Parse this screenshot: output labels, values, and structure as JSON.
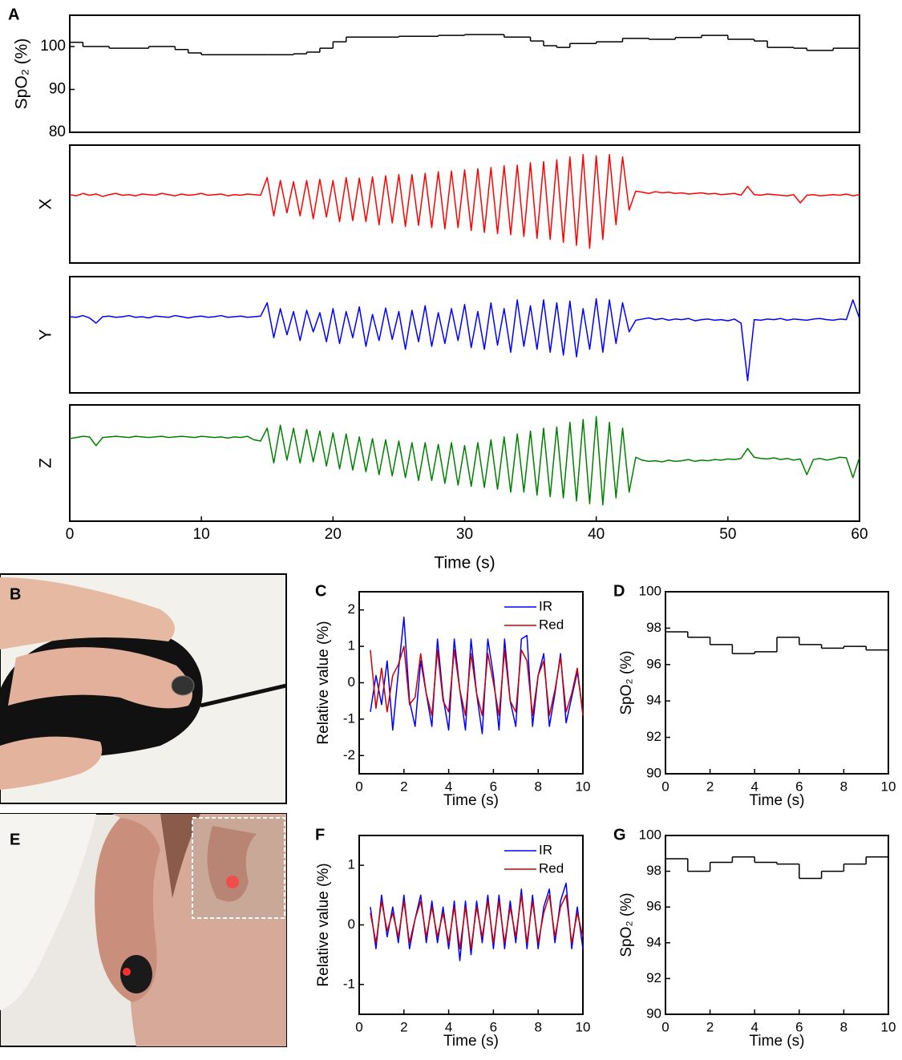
{
  "chart_data": [
    {
      "panel": "A",
      "type": "step",
      "ylabel": "SpO₂ (%)",
      "color": "#000000",
      "xlim": [
        0,
        60
      ],
      "ylim": [
        80,
        107.3
      ],
      "yticks": [
        80,
        90,
        100
      ],
      "x": [
        0,
        1,
        3,
        6,
        8,
        9,
        10,
        15,
        17,
        18,
        19,
        20,
        21,
        25,
        28,
        30,
        33,
        35,
        36,
        37,
        38,
        40,
        42,
        44,
        46,
        48,
        50,
        52,
        53,
        55,
        56,
        58
      ],
      "values": [
        101,
        100,
        99.6,
        100,
        99.3,
        98.5,
        98.1,
        98.1,
        98.3,
        98.7,
        99.6,
        101.1,
        102.2,
        102.4,
        102.6,
        102.8,
        102.2,
        101.3,
        100.2,
        99.8,
        100.7,
        101.1,
        101.9,
        101.7,
        102.1,
        102.6,
        101.7,
        101.3,
        99.8,
        99.6,
        99.1,
        99.6
      ]
    },
    {
      "type": "line",
      "ylabel": "X",
      "xlim": [
        0,
        60
      ],
      "ylim": [
        -1,
        1
      ],
      "x": [
        0,
        0.5,
        1,
        1.5,
        2,
        2.5,
        3,
        3.5,
        4,
        4.5,
        5,
        5.5,
        6,
        6.5,
        7,
        7.5,
        8,
        8.5,
        9,
        9.5,
        10,
        10.5,
        11,
        11.5,
        12,
        12.5,
        13,
        13.5,
        14,
        14.5,
        15,
        15.5,
        16,
        16.5,
        17,
        17.5,
        18,
        18.5,
        19,
        19.5,
        20,
        20.5,
        21,
        21.5,
        22,
        22.5,
        23,
        23.5,
        24,
        24.5,
        25,
        25.5,
        26,
        26.5,
        27,
        27.5,
        28,
        28.5,
        29,
        29.5,
        30,
        30.5,
        31,
        31.5,
        32,
        32.5,
        33,
        33.5,
        34,
        34.5,
        35,
        35.5,
        36,
        36.5,
        37,
        37.5,
        38,
        38.5,
        39,
        39.5,
        40,
        40.5,
        41,
        41.5,
        42,
        42.5,
        43,
        43.5,
        44,
        44.5,
        45,
        45.5,
        46,
        46.5,
        47,
        47.5,
        48,
        48.5,
        49,
        49.5,
        50,
        50.5,
        51,
        51.5,
        52,
        52.5,
        53,
        53.5,
        54,
        54.5,
        55,
        55.5,
        56,
        56.5,
        57,
        57.5,
        58,
        58.5,
        59,
        59.5,
        60
      ],
      "series": [
        {
          "color": "#ff0000",
          "values": [
            0.16,
            0.14,
            0.18,
            0.15,
            0.17,
            0.13,
            0.16,
            0.18,
            0.15,
            0.16,
            0.14,
            0.17,
            0.16,
            0.15,
            0.18,
            0.16,
            0.14,
            0.17,
            0.15,
            0.16,
            0.18,
            0.15,
            0.16,
            0.17,
            0.14,
            0.16,
            0.15,
            0.17,
            0.16,
            0.15,
            0.45,
            -0.2,
            0.4,
            -0.15,
            0.38,
            -0.2,
            0.4,
            -0.25,
            0.42,
            -0.22,
            0.4,
            -0.3,
            0.45,
            -0.28,
            0.44,
            -0.3,
            0.46,
            -0.35,
            0.48,
            -0.32,
            0.5,
            -0.38,
            0.5,
            -0.36,
            0.52,
            -0.4,
            0.55,
            -0.42,
            0.56,
            -0.4,
            0.58,
            -0.45,
            0.6,
            -0.48,
            0.62,
            -0.5,
            0.65,
            -0.52,
            0.66,
            -0.55,
            0.7,
            -0.58,
            0.72,
            -0.6,
            0.75,
            -0.65,
            0.8,
            -0.7,
            0.84,
            -0.75,
            0.82,
            -0.6,
            0.84,
            -0.35,
            0.8,
            -0.1,
            0.22,
            0.2,
            0.18,
            0.21,
            0.19,
            0.2,
            0.18,
            0.19,
            0.17,
            0.18,
            0.19,
            0.17,
            0.18,
            0.16,
            0.17,
            0.18,
            0.15,
            0.3,
            0.16,
            0.15,
            0.17,
            0.16,
            0.15,
            0.14,
            0.16,
            0.02,
            0.15,
            0.16,
            0.14,
            0.15,
            0.16,
            0.15,
            0.17,
            0.14,
            0.16
          ]
        }
      ]
    },
    {
      "type": "line",
      "ylabel": "Y",
      "xlim": [
        0,
        60
      ],
      "ylim": [
        -1,
        1
      ],
      "x": [
        0,
        0.5,
        1,
        1.5,
        2,
        2.5,
        3,
        3.5,
        4,
        4.5,
        5,
        5.5,
        6,
        6.5,
        7,
        7.5,
        8,
        8.5,
        9,
        9.5,
        10,
        10.5,
        11,
        11.5,
        12,
        12.5,
        13,
        13.5,
        14,
        14.5,
        15,
        15.5,
        16,
        16.5,
        17,
        17.5,
        18,
        18.5,
        19,
        19.5,
        20,
        20.5,
        21,
        21.5,
        22,
        22.5,
        23,
        23.5,
        24,
        24.5,
        25,
        25.5,
        26,
        26.5,
        27,
        27.5,
        28,
        28.5,
        29,
        29.5,
        30,
        30.5,
        31,
        31.5,
        32,
        32.5,
        33,
        33.5,
        34,
        34.5,
        35,
        35.5,
        36,
        36.5,
        37,
        37.5,
        38,
        38.5,
        39,
        39.5,
        40,
        40.5,
        41,
        41.5,
        42,
        42.5,
        43,
        43.5,
        44,
        44.5,
        45,
        45.5,
        46,
        46.5,
        47,
        47.5,
        48,
        48.5,
        49,
        49.5,
        50,
        50.5,
        51,
        51.5,
        52,
        52.5,
        53,
        53.5,
        54,
        54.5,
        55,
        55.5,
        56,
        56.5,
        57,
        57.5,
        58,
        58.5,
        59,
        59.5,
        60
      ],
      "series": [
        {
          "color": "#0000ff",
          "values": [
            0.31,
            0.3,
            0.33,
            0.29,
            0.2,
            0.31,
            0.32,
            0.3,
            0.31,
            0.33,
            0.3,
            0.31,
            0.29,
            0.32,
            0.31,
            0.3,
            0.33,
            0.31,
            0.29,
            0.31,
            0.32,
            0.3,
            0.31,
            0.33,
            0.3,
            0.31,
            0.32,
            0.3,
            0.31,
            0.32,
            0.55,
            -0.05,
            0.45,
            0.0,
            0.4,
            -0.1,
            0.42,
            0.05,
            0.38,
            -0.12,
            0.45,
            -0.15,
            0.4,
            -0.05,
            0.48,
            -0.2,
            0.35,
            -0.1,
            0.46,
            -0.08,
            0.4,
            -0.25,
            0.42,
            -0.12,
            0.5,
            -0.2,
            0.38,
            -0.15,
            0.45,
            -0.1,
            0.52,
            -0.22,
            0.4,
            -0.25,
            0.55,
            -0.18,
            0.45,
            -0.3,
            0.6,
            -0.2,
            0.5,
            -0.25,
            0.6,
            -0.3,
            0.55,
            -0.35,
            0.58,
            -0.38,
            0.45,
            -0.25,
            0.62,
            -0.3,
            0.6,
            -0.15,
            0.55,
            0.05,
            0.25,
            0.27,
            0.29,
            0.26,
            0.28,
            0.25,
            0.27,
            0.26,
            0.28,
            0.24,
            0.26,
            0.27,
            0.25,
            0.26,
            0.24,
            0.27,
            0.2,
            -0.79,
            0.26,
            0.25,
            0.27,
            0.26,
            0.28,
            0.25,
            0.27,
            0.26,
            0.25,
            0.27,
            0.28,
            0.26,
            0.25,
            0.27,
            0.26,
            0.6,
            0.28
          ]
        }
      ]
    },
    {
      "type": "line",
      "ylabel": "Z",
      "xlabel": "Time (s)",
      "xlim": [
        0,
        60
      ],
      "ylim": [
        -1,
        1
      ],
      "xticks": [
        0,
        10,
        20,
        30,
        40,
        50,
        60
      ],
      "x": [
        0,
        0.5,
        1,
        1.5,
        2,
        2.5,
        3,
        3.5,
        4,
        4.5,
        5,
        5.5,
        6,
        6.5,
        7,
        7.5,
        8,
        8.5,
        9,
        9.5,
        10,
        10.5,
        11,
        11.5,
        12,
        12.5,
        13,
        13.5,
        14,
        14.5,
        15,
        15.5,
        16,
        16.5,
        17,
        17.5,
        18,
        18.5,
        19,
        19.5,
        20,
        20.5,
        21,
        21.5,
        22,
        22.5,
        23,
        23.5,
        24,
        24.5,
        25,
        25.5,
        26,
        26.5,
        27,
        27.5,
        28,
        28.5,
        29,
        29.5,
        30,
        30.5,
        31,
        31.5,
        32,
        32.5,
        33,
        33.5,
        34,
        34.5,
        35,
        35.5,
        36,
        36.5,
        37,
        37.5,
        38,
        38.5,
        39,
        39.5,
        40,
        40.5,
        41,
        41.5,
        42,
        42.5,
        43,
        43.5,
        44,
        44.5,
        45,
        45.5,
        46,
        46.5,
        47,
        47.5,
        48,
        48.5,
        49,
        49.5,
        50,
        50.5,
        51,
        51.5,
        52,
        52.5,
        53,
        53.5,
        54,
        54.5,
        55,
        55.5,
        56,
        56.5,
        57,
        57.5,
        58,
        58.5,
        59,
        59.5,
        60
      ],
      "series": [
        {
          "color": "#008000",
          "values": [
            0.42,
            0.44,
            0.46,
            0.45,
            0.3,
            0.44,
            0.45,
            0.46,
            0.45,
            0.44,
            0.46,
            0.45,
            0.44,
            0.45,
            0.46,
            0.44,
            0.45,
            0.46,
            0.45,
            0.44,
            0.46,
            0.45,
            0.44,
            0.45,
            0.43,
            0.45,
            0.44,
            0.46,
            0.4,
            0.38,
            0.6,
            0.0,
            0.65,
            0.05,
            0.6,
            0.0,
            0.58,
            0.02,
            0.55,
            -0.05,
            0.52,
            -0.1,
            0.5,
            -0.12,
            0.45,
            -0.15,
            0.42,
            -0.2,
            0.4,
            -0.22,
            0.38,
            -0.25,
            0.35,
            -0.3,
            0.35,
            -0.3,
            0.32,
            -0.35,
            0.35,
            -0.38,
            0.3,
            -0.4,
            0.35,
            -0.42,
            0.4,
            -0.45,
            0.45,
            -0.5,
            0.5,
            -0.5,
            0.55,
            -0.55,
            0.6,
            -0.58,
            0.62,
            -0.6,
            0.7,
            -0.65,
            0.75,
            -0.7,
            0.8,
            -0.72,
            0.7,
            -0.6,
            0.6,
            -0.5,
            0.1,
            0.05,
            0.03,
            0.04,
            0.02,
            0.05,
            0.03,
            0.04,
            0.06,
            0.03,
            0.05,
            0.04,
            0.06,
            0.05,
            0.07,
            0.06,
            0.08,
            0.25,
            0.1,
            0.08,
            0.07,
            0.09,
            0.06,
            0.08,
            0.05,
            0.07,
            -0.2,
            0.06,
            0.08,
            0.05,
            0.07,
            0.1,
            0.09,
            -0.25,
            0.1
          ]
        }
      ]
    },
    {
      "panel": "C",
      "type": "line",
      "ylabel": "Relative value (%)",
      "xlabel": "Time (s)",
      "xlim": [
        0,
        10
      ],
      "ylim": [
        -2.5,
        2.5
      ],
      "xticks": [
        0,
        2,
        4,
        6,
        8,
        10
      ],
      "yticks": [
        -2,
        -1,
        0,
        1,
        2
      ],
      "legend": "upper right",
      "x": [
        0.5,
        0.75,
        1,
        1.25,
        1.5,
        1.75,
        2,
        2.25,
        2.5,
        2.75,
        3,
        3.25,
        3.5,
        3.75,
        4,
        4.25,
        4.5,
        4.75,
        5,
        5.25,
        5.5,
        5.75,
        6,
        6.25,
        6.5,
        6.75,
        7,
        7.25,
        7.5,
        7.75,
        8,
        8.25,
        8.5,
        8.75,
        9,
        9.25,
        9.5,
        9.75,
        10
      ],
      "series": [
        {
          "name": "IR",
          "color": "#0000ff",
          "values": [
            -0.8,
            0.2,
            -0.6,
            0.6,
            -1.3,
            0.3,
            1.8,
            -0.5,
            -1.2,
            0.6,
            -0.3,
            -1.2,
            1.2,
            -0.4,
            -1.3,
            1.2,
            -0.2,
            -1.3,
            1.2,
            -0.3,
            -1.4,
            1.2,
            0.2,
            -1.3,
            1.2,
            -0.5,
            -1.2,
            1.2,
            1.3,
            -1.2,
            0.2,
            0.8,
            -1.2,
            -0.3,
            0.8,
            -1.1,
            -0.4,
            0.3,
            -0.8
          ]
        },
        {
          "name": "Red",
          "color": "#cc0000",
          "values": [
            0.9,
            -0.7,
            0.4,
            -0.8,
            0.2,
            0.5,
            1.0,
            -0.6,
            -0.4,
            0.8,
            -0.3,
            -0.9,
            0.9,
            -0.5,
            -0.8,
            0.9,
            -0.2,
            -0.9,
            0.8,
            -0.3,
            -0.9,
            0.8,
            0.0,
            -0.9,
            0.9,
            -0.5,
            -0.8,
            0.9,
            0.6,
            -0.9,
            0.2,
            0.6,
            -0.9,
            -0.2,
            0.7,
            -0.8,
            -0.3,
            0.4,
            -0.9
          ]
        }
      ]
    },
    {
      "panel": "D",
      "type": "step",
      "ylabel": "SpO₂ (%)",
      "xlabel": "Time (s)",
      "color": "#000000",
      "xlim": [
        0,
        10
      ],
      "ylim": [
        90,
        100
      ],
      "xticks": [
        0,
        2,
        4,
        6,
        8,
        10
      ],
      "yticks": [
        90,
        92,
        94,
        96,
        98,
        100
      ],
      "x": [
        0,
        1,
        2,
        3,
        4,
        5,
        6,
        7,
        8,
        9
      ],
      "values": [
        97.8,
        97.5,
        97.1,
        96.6,
        96.7,
        97.5,
        97.1,
        96.9,
        97.0,
        96.8
      ]
    },
    {
      "panel": "F",
      "type": "line",
      "ylabel": "Relative value (%)",
      "xlabel": "Time (s)",
      "xlim": [
        0,
        10
      ],
      "ylim": [
        -1.5,
        1.5
      ],
      "xticks": [
        0,
        2,
        4,
        6,
        8,
        10
      ],
      "yticks": [
        -1,
        0,
        1
      ],
      "legend": "upper right",
      "x": [
        0.5,
        0.75,
        1,
        1.25,
        1.5,
        1.75,
        2,
        2.25,
        2.5,
        2.75,
        3,
        3.25,
        3.5,
        3.75,
        4,
        4.25,
        4.5,
        4.75,
        5,
        5.25,
        5.5,
        5.75,
        6,
        6.25,
        6.5,
        6.75,
        7,
        7.25,
        7.5,
        7.75,
        8,
        8.25,
        8.5,
        8.75,
        9,
        9.25,
        9.5,
        9.75,
        10
      ],
      "series": [
        {
          "name": "IR",
          "color": "#0000ff",
          "values": [
            0.3,
            -0.4,
            0.5,
            -0.2,
            0.3,
            -0.3,
            0.5,
            -0.4,
            0.1,
            0.5,
            -0.3,
            0.4,
            -0.3,
            0.3,
            -0.4,
            0.4,
            -0.6,
            0.4,
            -0.5,
            0.4,
            -0.3,
            0.5,
            -0.4,
            0.5,
            -0.4,
            0.4,
            -0.3,
            0.6,
            -0.4,
            0.5,
            -0.4,
            0.3,
            0.6,
            -0.3,
            0.4,
            0.7,
            -0.4,
            0.3,
            -0.4
          ]
        },
        {
          "name": "Red",
          "color": "#cc0000",
          "values": [
            0.2,
            -0.3,
            0.4,
            -0.1,
            0.2,
            -0.2,
            0.4,
            -0.3,
            0.1,
            0.4,
            -0.2,
            0.3,
            -0.2,
            0.2,
            -0.3,
            0.3,
            -0.4,
            0.3,
            -0.4,
            0.3,
            -0.2,
            0.4,
            -0.3,
            0.4,
            -0.3,
            0.3,
            -0.2,
            0.5,
            -0.3,
            0.4,
            -0.3,
            0.2,
            0.5,
            -0.2,
            0.3,
            0.5,
            -0.3,
            0.2,
            -0.2
          ]
        }
      ]
    },
    {
      "panel": "G",
      "type": "step",
      "ylabel": "SpO₂ (%)",
      "xlabel": "Time (s)",
      "color": "#000000",
      "xlim": [
        0,
        10
      ],
      "ylim": [
        90,
        100
      ],
      "xticks": [
        0,
        2,
        4,
        6,
        8,
        10
      ],
      "yticks": [
        90,
        92,
        94,
        96,
        98,
        100
      ],
      "x": [
        0,
        1,
        2,
        3,
        4,
        5,
        6,
        7,
        8,
        9
      ],
      "values": [
        98.7,
        98.0,
        98.5,
        98.8,
        98.5,
        98.4,
        97.6,
        98.0,
        98.4,
        98.8
      ]
    }
  ],
  "photos": [
    {
      "panel": "B"
    },
    {
      "panel": "E"
    }
  ]
}
